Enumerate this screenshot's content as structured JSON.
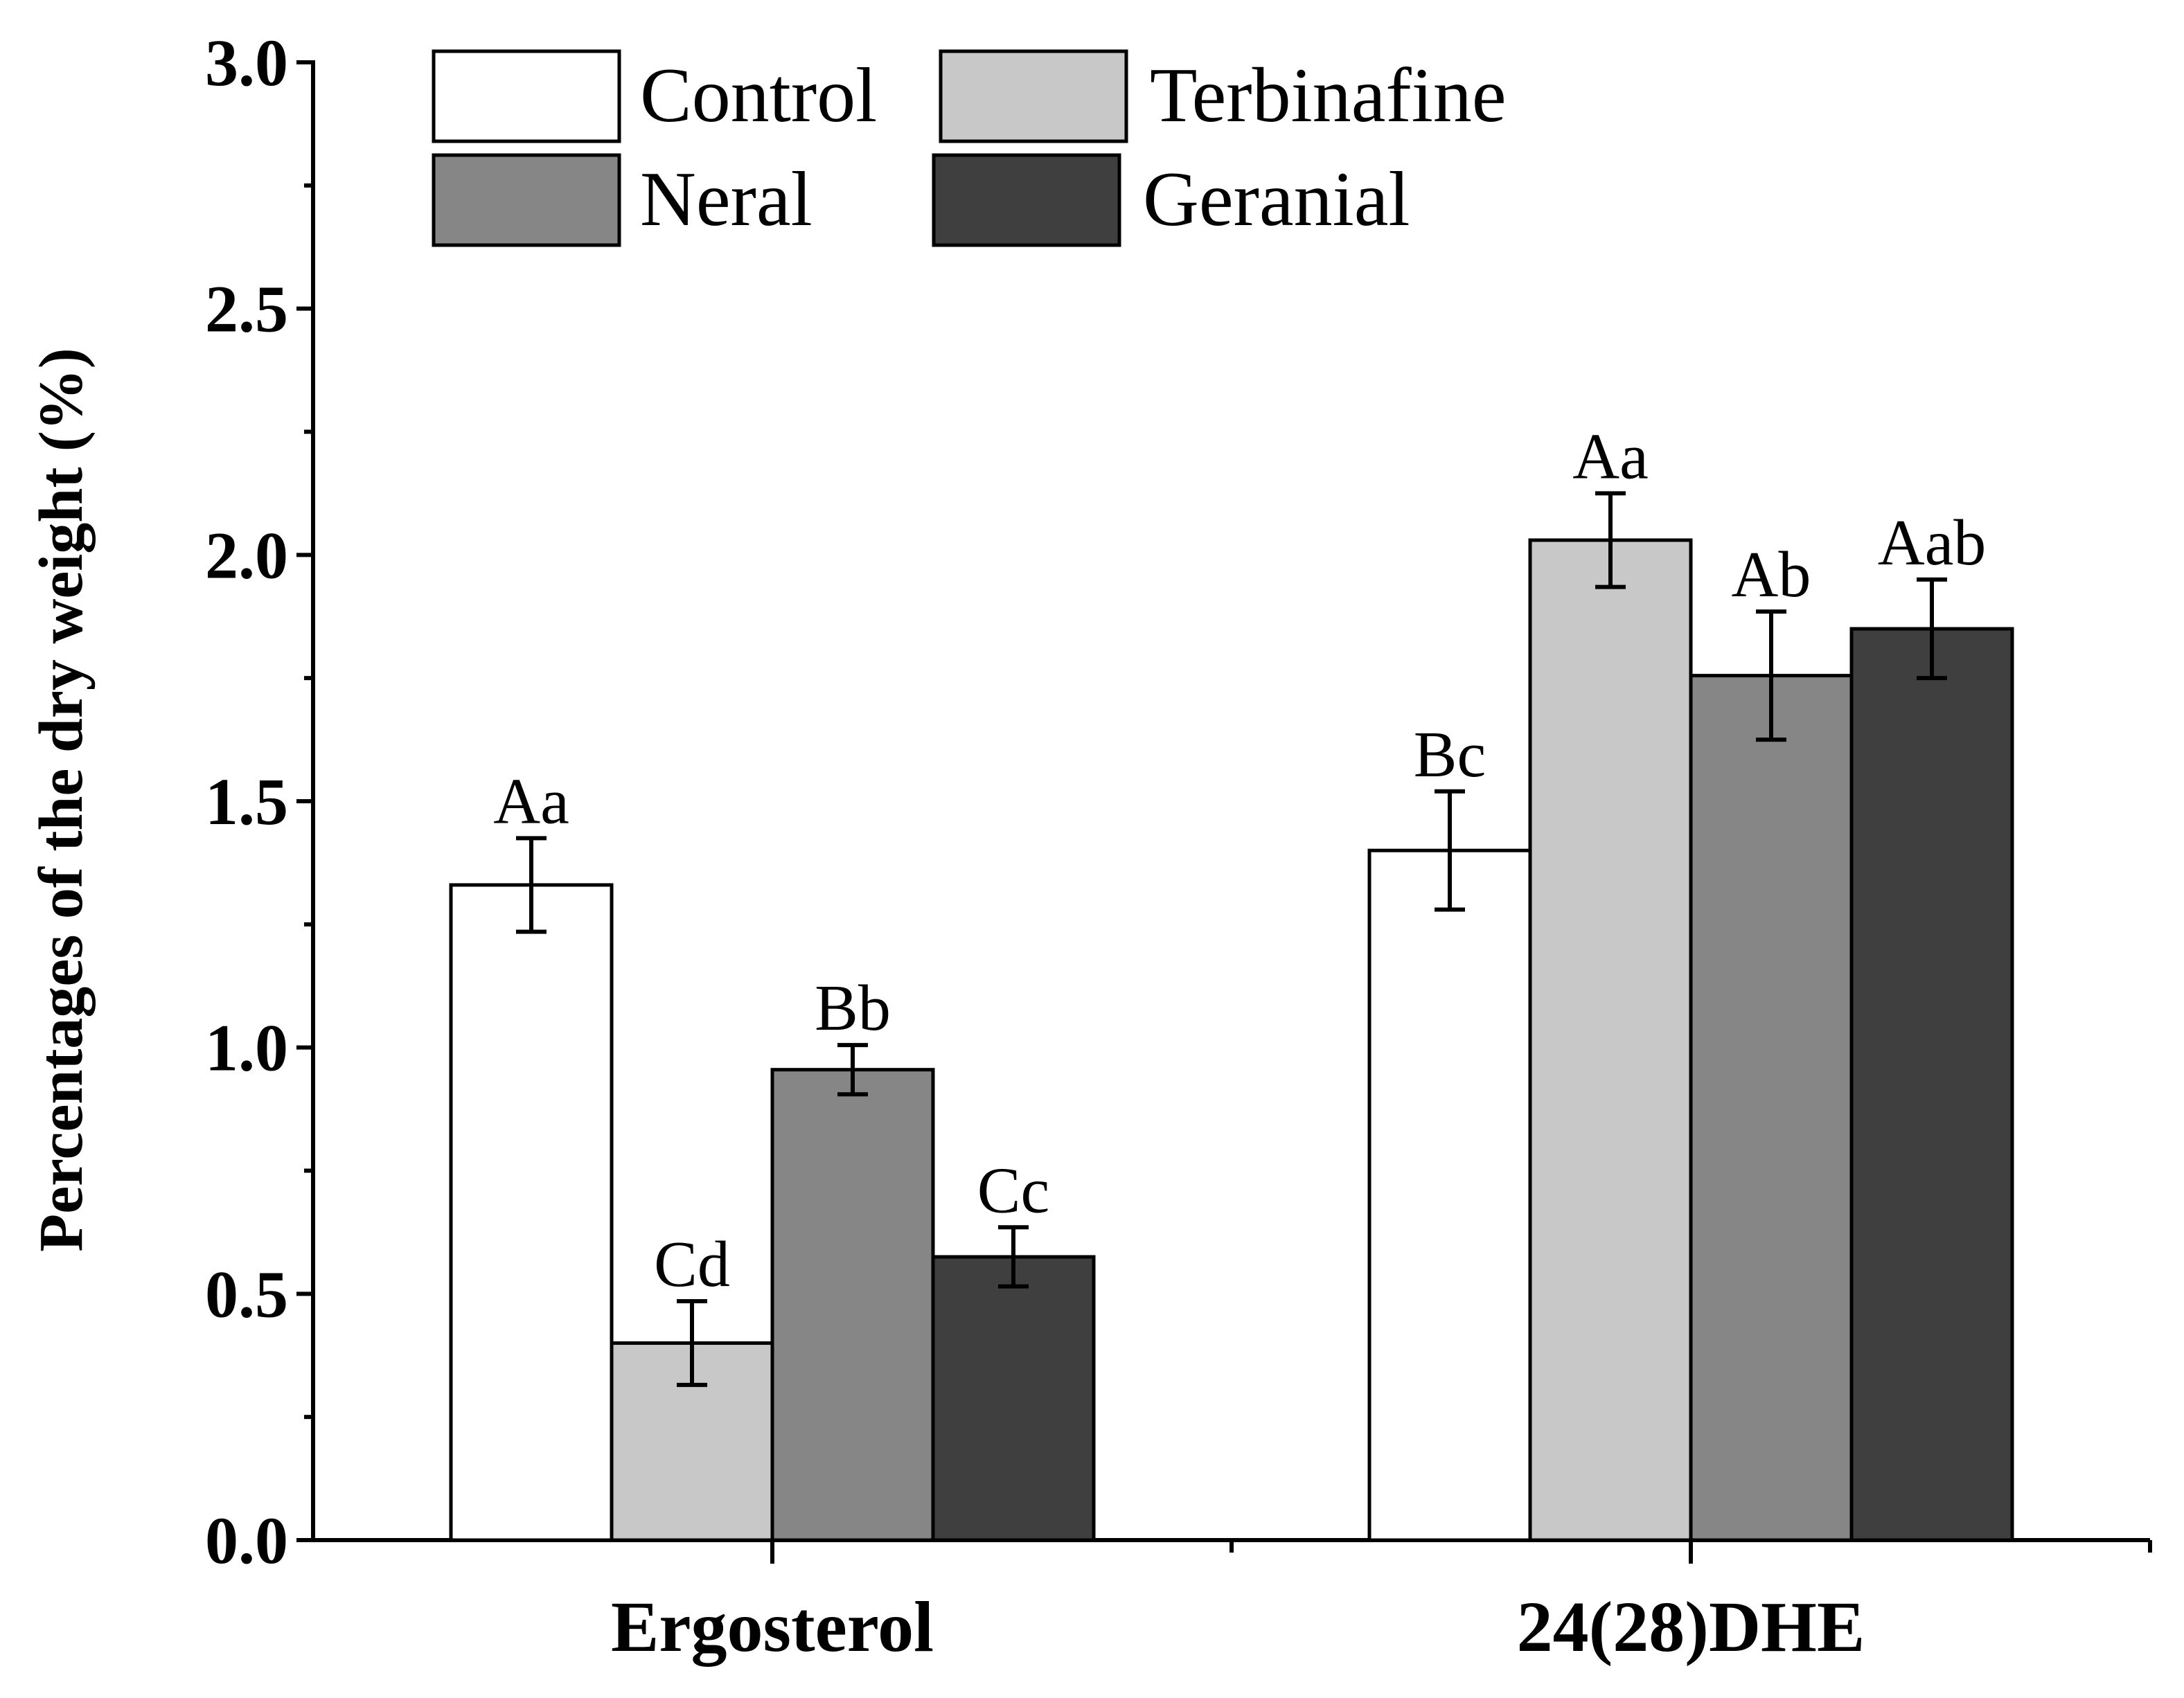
{
  "chart_data": {
    "type": "bar",
    "title": "",
    "xlabel": "",
    "ylabel": "Percentages of the dry weight (%)",
    "ylim": [
      0,
      3.0
    ],
    "yticks": [
      "0.0",
      "0.5",
      "1.0",
      "1.5",
      "2.0",
      "2.5",
      "3.0"
    ],
    "grid": false,
    "legend_position": "top-left",
    "categories": [
      "Ergosterol",
      "24(28)DHE"
    ],
    "series": [
      {
        "name": "Control",
        "color": "#ffffff",
        "values": [
          1.33,
          1.4
        ],
        "errors": [
          0.095,
          0.12
        ],
        "labels": [
          "Aa",
          "Bc"
        ]
      },
      {
        "name": "Terbinafine",
        "color": "#c8c8c8",
        "values": [
          0.4,
          2.03
        ],
        "errors": [
          0.085,
          0.095
        ],
        "labels": [
          "Cd",
          "Aa"
        ]
      },
      {
        "name": "Neral",
        "color": "#868686",
        "values": [
          0.955,
          1.755
        ],
        "errors": [
          0.05,
          0.13
        ],
        "labels": [
          "Bb",
          "Ab"
        ]
      },
      {
        "name": "Geranial",
        "color": "#3f3f3f",
        "values": [
          0.575,
          1.85
        ],
        "errors": [
          0.06,
          0.1
        ],
        "labels": [
          "Cc",
          "Aab"
        ]
      }
    ]
  }
}
